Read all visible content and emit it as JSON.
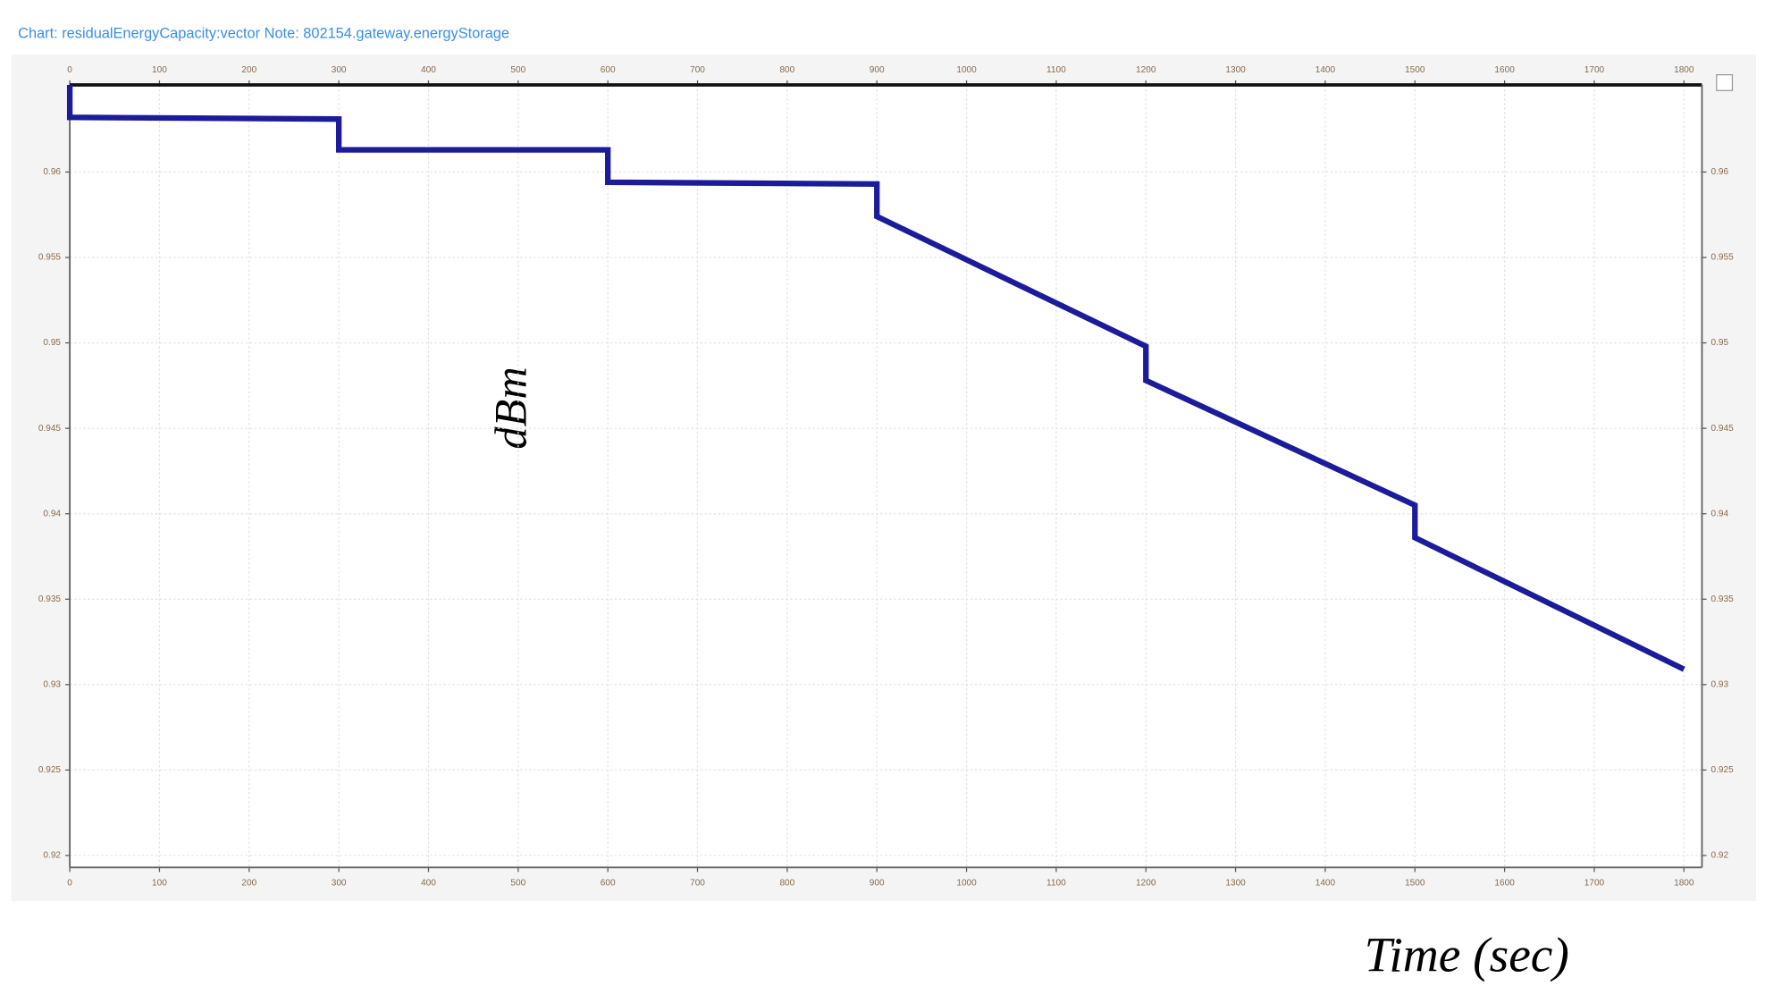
{
  "chart_data": {
    "type": "line",
    "title": "Chart: residualEnergyCapacity:vector Note: 802154.gateway.energyStorage",
    "y_label": "dBm",
    "x_label": "Time (sec)",
    "x": [
      0,
      0,
      300,
      300,
      600,
      600,
      900,
      900,
      1200,
      1200,
      1500,
      1500,
      1800
    ],
    "series": [
      {
        "color": "#1c1c9a",
        "values": [
          0.9651,
          0.9632,
          0.9631,
          0.9613,
          0.9613,
          0.9594,
          0.9593,
          0.9574,
          0.9498,
          0.9478,
          0.9405,
          0.9386,
          0.9309
        ]
      }
    ],
    "xlim": [
      0,
      1800
    ],
    "xticks": [
      0,
      100,
      200,
      300,
      400,
      500,
      600,
      700,
      800,
      900,
      1000,
      1100,
      1200,
      1300,
      1400,
      1500,
      1600,
      1700,
      1800
    ],
    "ylim": [
      0.9193,
      0.9651
    ],
    "yticks": [
      0.96,
      0.955,
      0.95,
      0.945,
      0.94,
      0.935,
      0.93,
      0.925,
      0.92
    ],
    "grid": true
  }
}
